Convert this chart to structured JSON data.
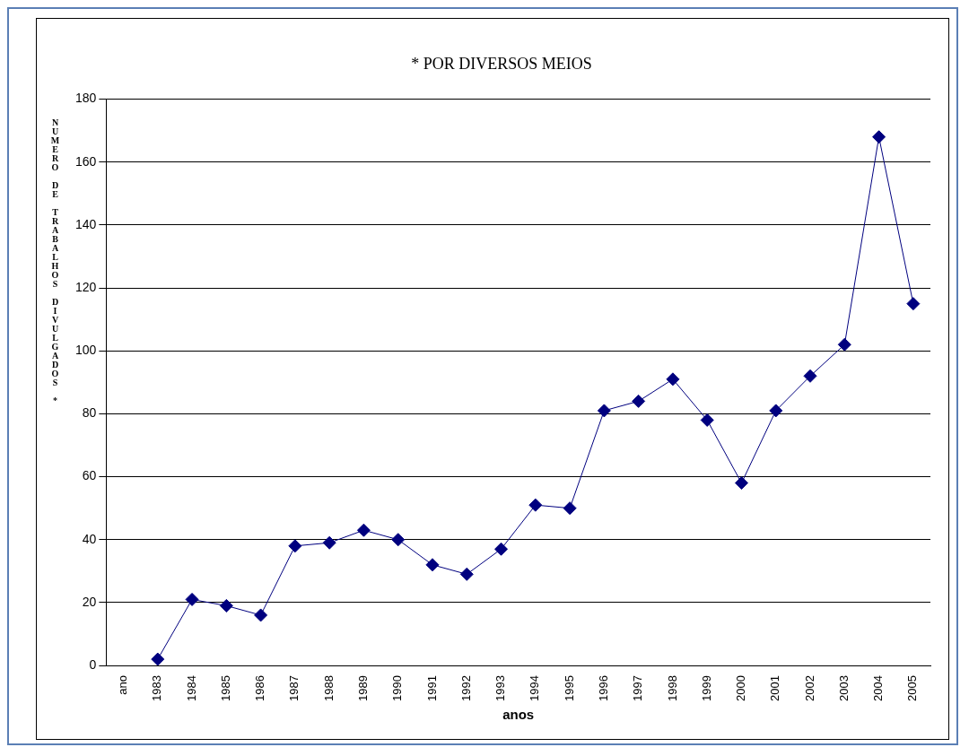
{
  "chart_data": {
    "type": "line",
    "title": "* POR DIVERSOS MEIOS",
    "xlabel": "anos",
    "ylabel": "NUMERO DE TRABALHOS DIVULGADOS *",
    "categories": [
      "ano",
      "1983",
      "1984",
      "1985",
      "1986",
      "1987",
      "1988",
      "1989",
      "1990",
      "1991",
      "1992",
      "1993",
      "1994",
      "1995",
      "1996",
      "1997",
      "1998",
      "1999",
      "2000",
      "2001",
      "2002",
      "2003",
      "2004",
      "2005"
    ],
    "series": [
      {
        "color": "#00007f",
        "values": [
          null,
          2,
          21,
          19,
          16,
          38,
          39,
          43,
          40,
          32,
          29,
          37,
          51,
          50,
          81,
          84,
          91,
          78,
          58,
          81,
          92,
          102,
          168,
          115
        ]
      }
    ],
    "ylim": [
      0,
      180
    ],
    "yticks": [
      0,
      20,
      40,
      60,
      80,
      100,
      120,
      140,
      160,
      180
    ],
    "grid": "y",
    "marker": "diamond",
    "line_style": "solid",
    "legend": false
  }
}
